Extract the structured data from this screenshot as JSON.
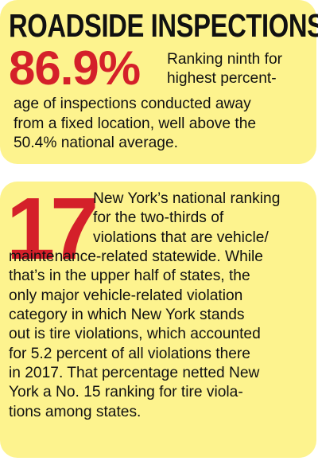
{
  "section1": {
    "headline": "ROADSIDE INSPECTIONS:",
    "stat": "86.9%",
    "lines": [
      "Ranking ninth for",
      "highest percent-",
      "age of inspections conducted away",
      "from a fixed location, well above the",
      "50.4% national average."
    ]
  },
  "section2": {
    "stat": "17",
    "lines": [
      "New York’s national ranking",
      "for the two-thirds of",
      "violations that are vehicle/",
      "maintenance-related statewide. While",
      "that’s in the upper half of states, the",
      "only major vehicle-related violation",
      "category in which New York stands",
      "out is tire violations, which accounted",
      "for 5.2 percent of all violations there",
      "in 2017. That percentage netted New",
      "York a No. 15 ranking for tire viola-",
      "tions among states."
    ]
  },
  "colors": {
    "card_background": "#fdf38e",
    "stat_red": "#d4202a",
    "text": "#111111"
  }
}
